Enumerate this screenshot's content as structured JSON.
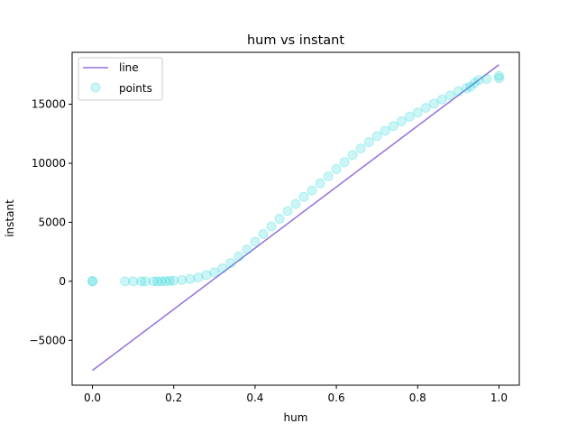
{
  "chart_data": {
    "type": "scatter",
    "title": "hum vs instant",
    "xlabel": "hum",
    "ylabel": "instant",
    "xlim": [
      -0.05,
      1.05
    ],
    "ylim": [
      -8800,
      19400
    ],
    "xticks": [
      0.0,
      0.2,
      0.4,
      0.6,
      0.8,
      1.0
    ],
    "xtick_labels": [
      "0.0",
      "0.2",
      "0.4",
      "0.6",
      "0.8",
      "1.0"
    ],
    "yticks": [
      -5000,
      0,
      5000,
      10000,
      15000
    ],
    "ytick_labels": [
      "−5000",
      "0",
      "5000",
      "10000",
      "15000"
    ],
    "grid": false,
    "legend_position": "top-left",
    "series": [
      {
        "name": "line",
        "kind": "line",
        "color": "#9370db",
        "x": [
          0.0,
          1.0
        ],
        "y": [
          -7550,
          18350
        ]
      },
      {
        "name": "points",
        "kind": "scatter",
        "color": "#00ced1",
        "x": [
          0.0,
          0.0,
          0.08,
          0.1,
          0.12,
          0.13,
          0.15,
          0.16,
          0.17,
          0.18,
          0.19,
          0.2,
          0.22,
          0.24,
          0.26,
          0.28,
          0.3,
          0.32,
          0.34,
          0.36,
          0.38,
          0.4,
          0.42,
          0.44,
          0.46,
          0.48,
          0.5,
          0.52,
          0.54,
          0.56,
          0.58,
          0.6,
          0.62,
          0.64,
          0.66,
          0.68,
          0.7,
          0.72,
          0.74,
          0.76,
          0.78,
          0.8,
          0.82,
          0.84,
          0.86,
          0.88,
          0.9,
          0.92,
          0.93,
          0.94,
          0.95,
          0.97,
          1.0,
          1.0
        ],
        "y": [
          0,
          30,
          0,
          0,
          0,
          0,
          0,
          0,
          10,
          20,
          40,
          60,
          110,
          200,
          330,
          520,
          760,
          1100,
          1550,
          2100,
          2700,
          3350,
          4000,
          4650,
          5300,
          5950,
          6550,
          7150,
          7700,
          8300,
          8900,
          9500,
          10100,
          10700,
          11250,
          11800,
          12300,
          12750,
          13150,
          13550,
          13950,
          14300,
          14700,
          15050,
          15400,
          15750,
          16100,
          16350,
          16500,
          16800,
          17050,
          17150,
          17200,
          17400
        ]
      }
    ]
  }
}
